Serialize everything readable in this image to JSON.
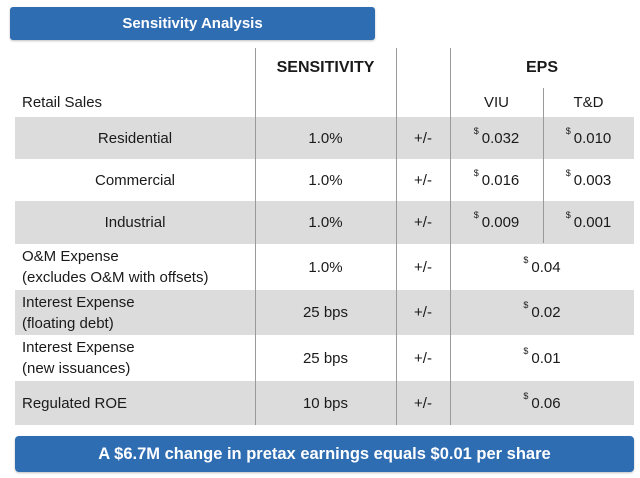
{
  "title": "Sensitivity Analysis",
  "headers": {
    "sensitivity": "SENSITIVITY",
    "eps": "EPS",
    "retail_sales": "Retail Sales",
    "viu": "VIU",
    "td": "T&D"
  },
  "currency_symbol": "$",
  "retail_rows": [
    {
      "label": "Residential",
      "sensitivity": "1.0%",
      "pm": "+/-",
      "viu": "0.032",
      "td": "0.010"
    },
    {
      "label": "Commercial",
      "sensitivity": "1.0%",
      "pm": "+/-",
      "viu": "0.016",
      "td": "0.003"
    },
    {
      "label": "Industrial",
      "sensitivity": "1.0%",
      "pm": "+/-",
      "viu": "0.009",
      "td": "0.001"
    }
  ],
  "other_rows": [
    {
      "label_line1": "O&M Expense",
      "label_line2": "(excludes O&M with offsets)",
      "sensitivity": "1.0%",
      "pm": "+/-",
      "eps": "0.04"
    },
    {
      "label_line1": "Interest Expense",
      "label_line2": "(floating debt)",
      "sensitivity": "25 bps",
      "pm": "+/-",
      "eps": "0.02"
    },
    {
      "label_line1": "Interest Expense",
      "label_line2": "(new issuances)",
      "sensitivity": "25 bps",
      "pm": "+/-",
      "eps": "0.01"
    },
    {
      "label_line1": "Regulated ROE",
      "label_line2": "",
      "sensitivity": "10 bps",
      "pm": "+/-",
      "eps": "0.06"
    }
  ],
  "footer": "A $6.7M change in pretax earnings equals $0.01 per share",
  "colors": {
    "accent": "#2f6db3",
    "shade": "#dcdcdc",
    "rule": "#9a9a9a"
  }
}
